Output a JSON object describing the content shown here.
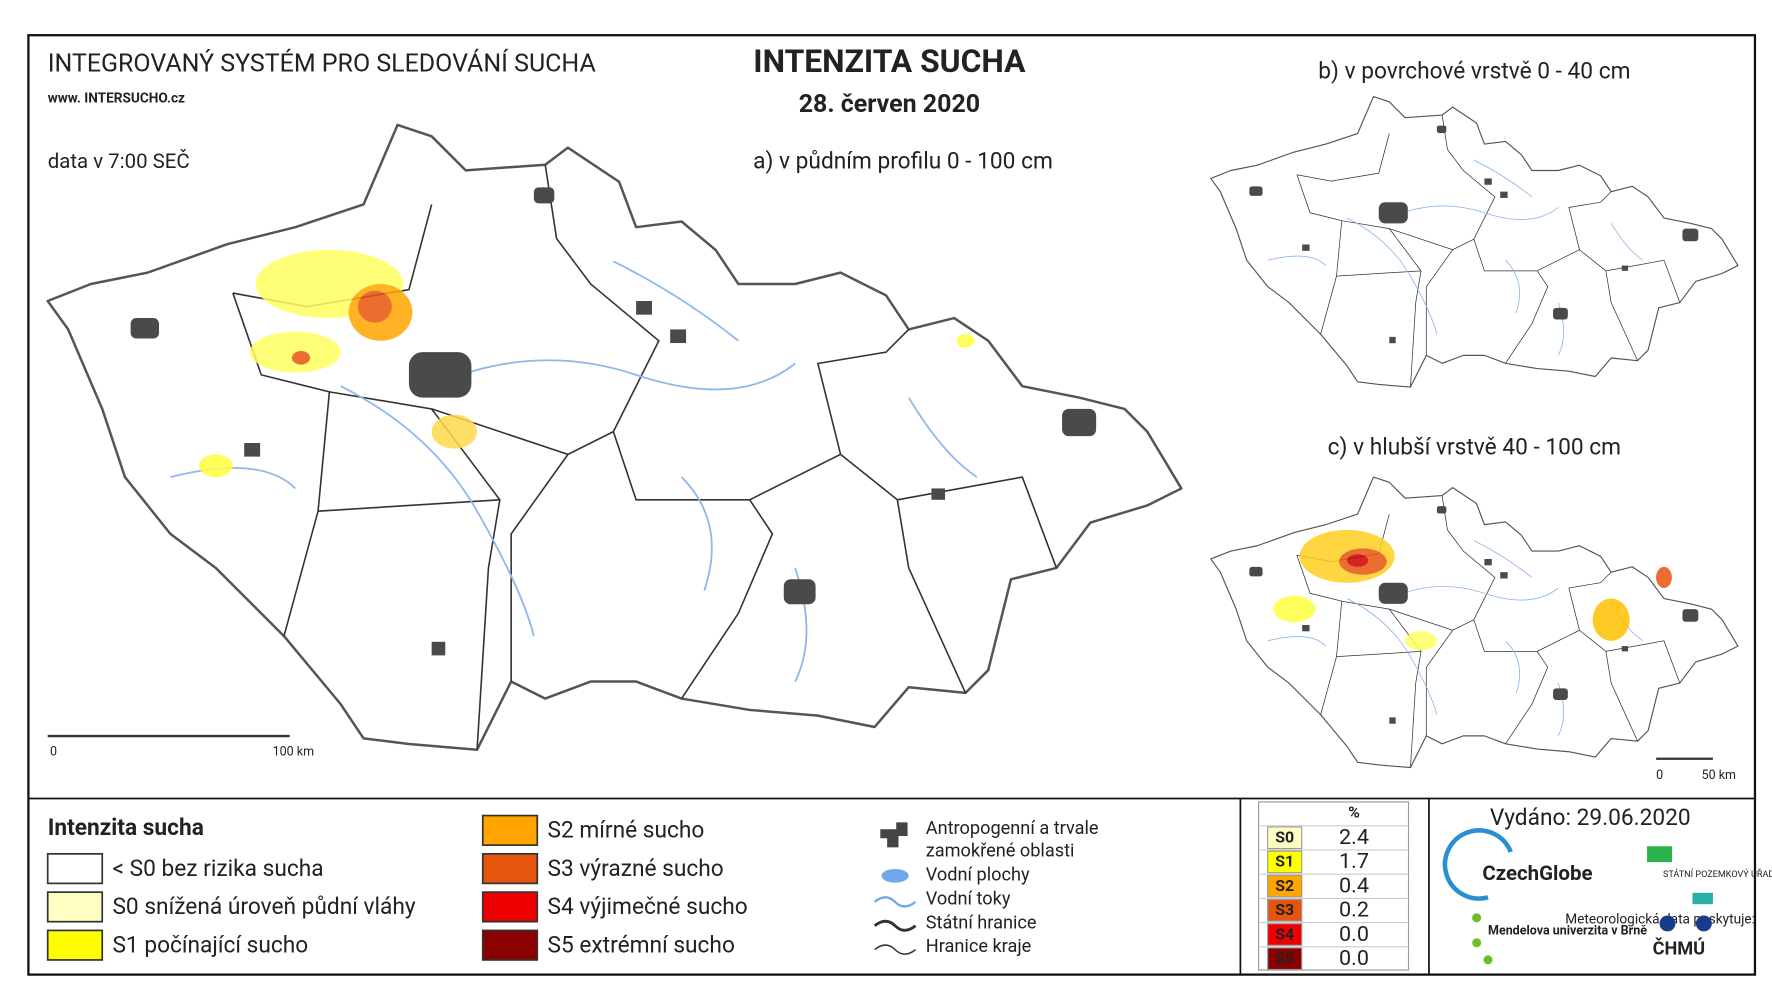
{
  "header": {
    "system": "INTEGROVANÝ SYSTÉM PRO SLEDOVÁNÍ SUCHA",
    "website": "www. INTERSUCHO.cz",
    "title": "INTENZITA SUCHA",
    "date": "28. červen 2020",
    "data_time": "data v 7:00 SEČ"
  },
  "maps": {
    "main": {
      "label": "a) v půdním profilu 0 - 100 cm",
      "scale_start": "0",
      "scale_end": "100 km"
    },
    "surface": {
      "label": "b) v povrchové vrstvě 0 - 40 cm"
    },
    "deep": {
      "label": "c) v hlubší vrstvě 40 - 100 cm",
      "scale_start": "0",
      "scale_end": "50 km"
    }
  },
  "legend": {
    "title": "Intenzita sucha",
    "items": [
      {
        "label": "< S0 bez rizika sucha",
        "color": "#ffffff"
      },
      {
        "label": "S0 snížená úroveň půdní vláhy",
        "color": "#ffffc4"
      },
      {
        "label": "S1 počínající sucho",
        "color": "#ffff00"
      },
      {
        "label": "S2 mírné sucho",
        "color": "#ffa500"
      },
      {
        "label": "S3 výrazné sucho",
        "color": "#e6550d"
      },
      {
        "label": "S4 výjimečné sucho",
        "color": "#ee0000"
      },
      {
        "label": "S5 extrémní sucho",
        "color": "#8b0000"
      }
    ]
  },
  "symbols": {
    "wet_areas": "Antropogenní a trvale zamokřené oblasti",
    "water_bodies": "Vodní plochy",
    "rivers": "Vodní toky",
    "state_border": "Státní hranice",
    "region_border": "Hranice kraje"
  },
  "stats": {
    "header": "%",
    "rows": [
      {
        "class": "S0",
        "value": "2.4",
        "color": "#ffffc4"
      },
      {
        "class": "S1",
        "value": "1.7",
        "color": "#ffff00"
      },
      {
        "class": "S2",
        "value": "0.4",
        "color": "#ffa500"
      },
      {
        "class": "S3",
        "value": "0.2",
        "color": "#e6550d"
      },
      {
        "class": "S4",
        "value": "0.0",
        "color": "#ee0000"
      },
      {
        "class": "S5",
        "value": "0.0",
        "color": "#8b0000"
      }
    ]
  },
  "issued": "Vydáno: 29.06.2020",
  "logos": {
    "czechglobe": "CzechGlobe",
    "spu": "STÁTNÍ POZEMKOVÝ ÚŘAD",
    "mendelu": "Mendelova univerzita v Brně",
    "meteo": "Meteorologická data poskytuje:",
    "chmu": "ČHMÚ"
  }
}
